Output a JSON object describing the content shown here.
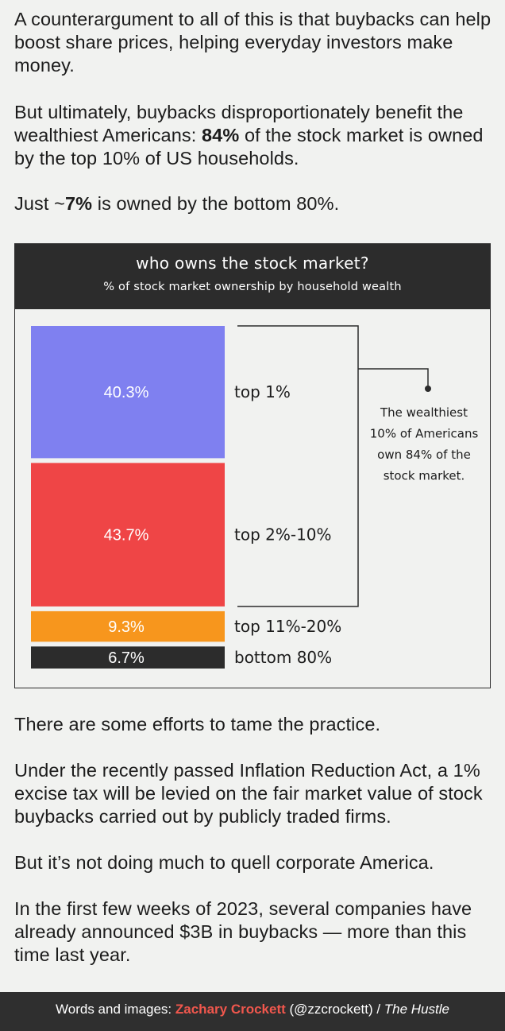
{
  "intro": {
    "p1": "A counterargument to all of this is that buybacks can help boost share prices, helping everyday investors make money.",
    "p2_a": "But ultimately, buybacks disproportionately benefit the wealthiest Americans: ",
    "p2_b": "84%",
    "p2_c": " of the stock market is owned by the top 10% of US households.",
    "p3_a": "Just ~",
    "p3_b": "7%",
    "p3_c": " is owned by the bottom 80%."
  },
  "chart_data": {
    "type": "bar",
    "title": "who owns the stock market?",
    "subtitle": "% of stock market ownership by household wealth",
    "categories": [
      "top 1%",
      "top 2%-10%",
      "top 11%-20%",
      "bottom 80%"
    ],
    "values": [
      40.3,
      43.7,
      9.3,
      6.7
    ],
    "value_labels": [
      "40.3%",
      "43.7%",
      "9.3%",
      "6.7%"
    ],
    "colors": [
      "#7f80f0",
      "#ef4546",
      "#f7961d",
      "#2c2c2c"
    ],
    "annotation": [
      "The wealthiest",
      "10% of Americans",
      "own 84% of the",
      "stock market."
    ],
    "grid": false,
    "legend": "none"
  },
  "outro": {
    "p1": "There are some efforts to tame the practice.",
    "p2": "Under the recently passed Inflation Reduction Act, a 1% excise tax will be levied on the fair market value of stock buybacks carried out by publicly traded firms.",
    "p3": "But it’s not doing much to quell corporate America.",
    "p4": "In the first few weeks of 2023, several companies have already announced $3B in buybacks — more than this time last year."
  },
  "footer": {
    "prefix": "Words and images: ",
    "author": "Zachary Crockett",
    "handle": " (@zzcrockett) / ",
    "publication": "The Hustle"
  }
}
